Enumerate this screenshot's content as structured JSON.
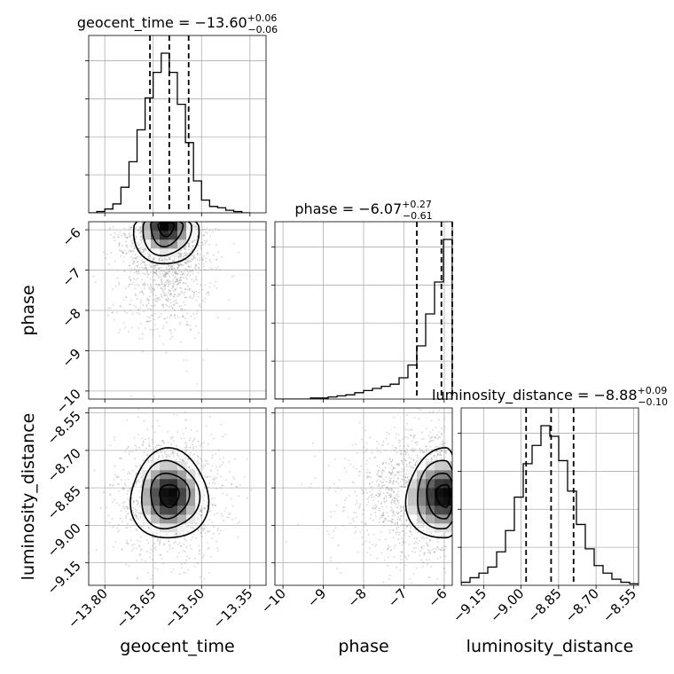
{
  "chart_data": {
    "type": "corner",
    "parameters": [
      "geocent_time",
      "phase",
      "luminosity_distance"
    ],
    "axis_labels": {
      "geocent_time": "geocent_time",
      "phase": "phase",
      "luminosity_distance": "luminosity_distance"
    },
    "ranges": {
      "geocent_time": [
        -13.85,
        -13.3
      ],
      "phase": [
        -10.2,
        -5.8
      ],
      "luminosity_distance": [
        -9.24,
        -8.53
      ]
    },
    "ticks": {
      "geocent_time": {
        "values": [
          -13.8,
          -13.65,
          -13.5,
          -13.35
        ],
        "labels": [
          "−13.80",
          "−13.65",
          "−13.50",
          "−13.35"
        ]
      },
      "phase": {
        "values": [
          -10,
          -9,
          -8,
          -7,
          -6
        ],
        "labels": [
          "−10",
          "−9",
          "−8",
          "−7",
          "−6"
        ]
      },
      "luminosity_distance": {
        "values": [
          -9.15,
          -9.0,
          -8.85,
          -8.7,
          -8.55
        ],
        "labels": [
          "−9.15",
          "−9.00",
          "−8.85",
          "−8.70",
          "−8.55"
        ]
      }
    },
    "titles": [
      {
        "name": "geocent_time",
        "value": "−13.60",
        "plus": "+0.06",
        "minus": "−0.06"
      },
      {
        "name": "phase",
        "value": "−6.07",
        "plus": "+0.27",
        "minus": "−0.61"
      },
      {
        "name": "luminosity_distance",
        "value": "−8.88",
        "plus": "+0.09",
        "minus": "−0.10"
      }
    ],
    "quantiles": {
      "geocent_time": [
        -13.66,
        -13.6,
        -13.54
      ],
      "phase": [
        -6.68,
        -6.07,
        -5.8
      ],
      "luminosity_distance": [
        -8.98,
        -8.88,
        -8.79
      ]
    },
    "histograms": {
      "geocent_time": {
        "edges_range": [
          -13.85,
          -13.35
        ],
        "bins": 20,
        "counts": [
          0,
          1,
          3,
          7,
          20,
          40,
          65,
          90,
          110,
          125,
          110,
          85,
          55,
          25,
          10,
          5,
          4,
          2,
          1,
          0
        ]
      },
      "phase": {
        "edges_range": [
          -10.2,
          -5.8
        ],
        "bins": 20,
        "counts": [
          0,
          0,
          0,
          0,
          1,
          1,
          2,
          3,
          4,
          6,
          8,
          10,
          12,
          14,
          20,
          32,
          50,
          80,
          110,
          150
        ]
      },
      "luminosity_distance": {
        "edges_range": [
          -9.24,
          -8.53
        ],
        "bins": 20,
        "counts": [
          2,
          5,
          8,
          12,
          22,
          36,
          58,
          80,
          92,
          105,
          98,
          82,
          62,
          40,
          24,
          13,
          8,
          4,
          2,
          1
        ]
      }
    },
    "density_peaks": {
      "geocent_time|phase": {
        "mean": [
          -13.61,
          -5.9
        ],
        "sd": [
          0.05,
          0.5
        ],
        "corr": -0.3
      },
      "geocent_time|luminosity_distance": {
        "mean": [
          -13.6,
          -8.88
        ],
        "sd": [
          0.06,
          0.09
        ],
        "corr": 0.0
      },
      "phase|luminosity_distance": {
        "mean": [
          -5.95,
          -8.88
        ],
        "sd": [
          0.5,
          0.09
        ],
        "corr": 0.0
      }
    },
    "grid": true
  }
}
